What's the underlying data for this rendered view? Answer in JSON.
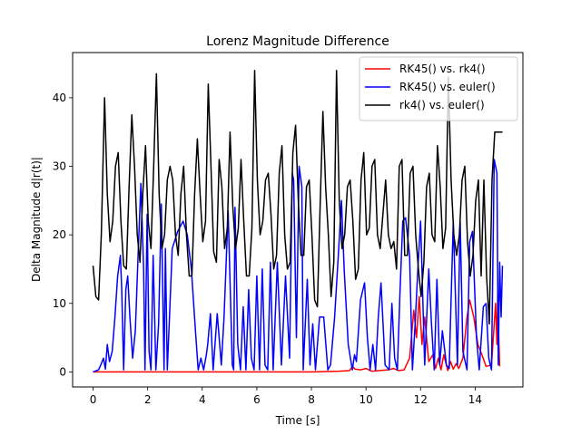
{
  "chart_data": {
    "type": "line",
    "title": "Lorenz Magnitude Difference",
    "xlabel": "Time [s]",
    "ylabel": "Delta Magnitude d|r(t)|",
    "xlim": [
      -0.75,
      15.75
    ],
    "ylim": [
      -2.2,
      46.6
    ],
    "xticks": [
      0,
      2,
      4,
      6,
      8,
      10,
      12,
      14
    ],
    "yticks": [
      0,
      10,
      20,
      30,
      40
    ],
    "grid": false,
    "legend_position": "top-right",
    "series": [
      {
        "name": "RK45() vs. rk4()",
        "color": "#ff0000",
        "x": [
          0,
          1,
          2,
          3,
          4,
          5,
          6,
          7,
          8,
          9,
          9.4,
          9.5,
          9.6,
          9.8,
          10.0,
          10.2,
          10.5,
          10.8,
          11.0,
          11.2,
          11.4,
          11.6,
          11.75,
          11.85,
          11.95,
          12.05,
          12.15,
          12.3,
          12.45,
          12.55,
          12.65,
          12.75,
          12.85,
          13.0,
          13.1,
          13.2,
          13.3,
          13.4,
          13.55,
          13.7,
          13.8,
          13.95,
          14.1,
          14.25,
          14.4,
          14.6,
          14.75,
          14.8,
          14.83,
          14.86,
          14.9
        ],
        "y": [
          0,
          0,
          0,
          0,
          0,
          0,
          0,
          0,
          0,
          0.1,
          0.2,
          0.8,
          0.4,
          0.3,
          0.5,
          0.1,
          0.2,
          0.3,
          0.5,
          0.2,
          0.3,
          2,
          9,
          5,
          11,
          4,
          8,
          1.5,
          2.5,
          0.5,
          2,
          0.3,
          2.5,
          0.2,
          1.5,
          0.4,
          1.2,
          0.5,
          2,
          8,
          10.5,
          8,
          4,
          2.5,
          0.8,
          1,
          10,
          4,
          12,
          6,
          0.8
        ]
      },
      {
        "name": "RK45() vs. euler()",
        "color": "#0000ff",
        "x": [
          0,
          0.2,
          0.3,
          0.38,
          0.45,
          0.52,
          0.6,
          0.7,
          0.8,
          0.9,
          1.0,
          1.05,
          1.12,
          1.2,
          1.27,
          1.35,
          1.45,
          1.55,
          1.65,
          1.75,
          1.85,
          1.9,
          1.98,
          2.05,
          2.12,
          2.2,
          2.3,
          2.4,
          2.5,
          2.6,
          2.65,
          2.72,
          2.8,
          2.9,
          3.1,
          3.3,
          3.45,
          3.6,
          3.75,
          3.85,
          3.95,
          4.05,
          4.15,
          4.2,
          4.3,
          4.4,
          4.55,
          4.7,
          4.8,
          4.95,
          5.1,
          5.15,
          5.2,
          5.3,
          5.4,
          5.5,
          5.6,
          5.7,
          5.8,
          5.9,
          6.0,
          6.1,
          6.2,
          6.3,
          6.4,
          6.5,
          6.6,
          6.75,
          6.9,
          7.05,
          7.2,
          7.3,
          7.35,
          7.45,
          7.55,
          7.65,
          7.7,
          7.85,
          7.95,
          8.05,
          8.15,
          8.3,
          8.45,
          8.6,
          8.7,
          8.85,
          9.0,
          9.1,
          9.2,
          9.35,
          9.5,
          9.58,
          9.65,
          9.8,
          9.95,
          10.05,
          10.15,
          10.25,
          10.35,
          10.45,
          10.55,
          10.7,
          10.85,
          10.95,
          11.05,
          11.15,
          11.25,
          11.35,
          11.45,
          11.6,
          11.7,
          11.8,
          11.9,
          12.0,
          12.15,
          12.3,
          12.4,
          12.5,
          12.6,
          12.7,
          12.8,
          12.95,
          13.05,
          13.2,
          13.35,
          13.45,
          13.55,
          13.7,
          13.8,
          13.9,
          14.05,
          14.15,
          14.3,
          14.4,
          14.5,
          14.6,
          14.7,
          14.8,
          14.85,
          14.9,
          14.95,
          15.0
        ],
        "y": [
          0,
          0.3,
          1.2,
          2,
          0.4,
          4,
          1.5,
          3,
          8,
          14,
          17,
          12,
          0.3,
          12,
          14,
          8,
          2,
          6,
          17,
          27.5,
          15,
          0.3,
          23,
          3,
          0.3,
          17,
          0.3,
          7,
          24.5,
          0.3,
          18,
          0.3,
          8,
          18,
          20.5,
          22,
          20,
          15,
          6,
          0.3,
          2,
          0.3,
          2.5,
          4,
          8.5,
          0.3,
          8.5,
          1,
          8,
          23.5,
          1,
          0.3,
          24,
          4,
          0.3,
          9.5,
          0.3,
          12,
          2,
          0.3,
          14,
          0.3,
          15,
          1,
          0.3,
          16,
          0.3,
          16,
          1,
          14,
          2,
          29,
          28,
          5,
          30,
          27,
          0.3,
          13.5,
          1,
          7,
          0.3,
          8,
          8,
          0.3,
          1,
          8,
          18,
          25,
          15,
          4,
          0.3,
          2.5,
          1.5,
          10.5,
          13,
          5,
          0.3,
          4,
          0.3,
          8,
          13,
          1,
          0.3,
          10,
          2,
          0.3,
          12,
          22,
          22.5,
          17,
          0.3,
          7,
          15,
          22,
          1,
          15,
          7,
          0.3,
          13.5,
          1,
          6,
          1,
          0.5,
          22,
          1,
          22,
          3,
          0.3,
          19,
          20.5,
          5,
          0.3,
          9.5,
          10,
          2,
          0.3,
          31,
          29,
          1,
          16,
          8,
          15.5
        ],
        "x_unused": null
      },
      {
        "name": "rk4() vs. euler()",
        "color": "#000000",
        "x": [
          0,
          0.1,
          0.2,
          0.3,
          0.42,
          0.52,
          0.62,
          0.72,
          0.82,
          0.92,
          1.02,
          1.12,
          1.22,
          1.32,
          1.42,
          1.52,
          1.62,
          1.72,
          1.82,
          1.92,
          2.02,
          2.12,
          2.22,
          2.32,
          2.42,
          2.52,
          2.62,
          2.72,
          2.82,
          2.92,
          3.02,
          3.12,
          3.22,
          3.32,
          3.42,
          3.52,
          3.62,
          3.72,
          3.82,
          3.92,
          4.02,
          4.12,
          4.22,
          4.32,
          4.42,
          4.52,
          4.62,
          4.72,
          4.82,
          4.92,
          5.02,
          5.12,
          5.22,
          5.32,
          5.42,
          5.52,
          5.62,
          5.72,
          5.82,
          5.92,
          6.02,
          6.12,
          6.22,
          6.32,
          6.42,
          6.52,
          6.62,
          6.72,
          6.82,
          6.92,
          7.02,
          7.12,
          7.22,
          7.32,
          7.42,
          7.52,
          7.62,
          7.72,
          7.82,
          7.92,
          8.02,
          8.12,
          8.22,
          8.32,
          8.42,
          8.52,
          8.62,
          8.72,
          8.82,
          8.92,
          9.02,
          9.12,
          9.22,
          9.32,
          9.42,
          9.52,
          9.62,
          9.72,
          9.82,
          9.92,
          10.02,
          10.12,
          10.22,
          10.32,
          10.42,
          10.52,
          10.62,
          10.72,
          10.82,
          10.92,
          11.02,
          11.12,
          11.22,
          11.32,
          11.42,
          11.52,
          11.62,
          11.72,
          11.82,
          11.92,
          12.02,
          12.12,
          12.22,
          12.32,
          12.42,
          12.52,
          12.62,
          12.72,
          12.82,
          12.92,
          13.02,
          13.12,
          13.22,
          13.32,
          13.42,
          13.52,
          13.62,
          13.72,
          13.82,
          13.92,
          14.02,
          14.12,
          14.22,
          14.32,
          14.42,
          14.52,
          14.62,
          14.72,
          14.82,
          14.92,
          15.0
        ],
        "y": [
          15.5,
          11,
          10.5,
          20,
          40,
          26,
          19,
          22,
          30,
          32,
          22,
          15.5,
          15,
          27,
          37.5,
          30,
          20,
          16,
          26,
          33,
          22,
          18,
          30,
          43.5,
          26,
          18,
          20,
          28,
          30,
          28,
          20,
          17,
          26,
          30,
          20,
          14,
          14,
          26,
          34,
          26,
          19,
          22,
          42,
          30,
          17.5,
          16,
          31,
          27,
          18,
          21,
          35,
          24,
          18,
          21,
          31,
          22,
          14,
          14,
          21,
          44,
          28,
          20,
          22,
          28,
          29,
          23,
          15,
          17,
          29,
          33,
          20,
          15,
          16,
          32,
          36,
          25,
          17,
          17,
          27,
          28,
          20,
          10.5,
          9.5,
          24,
          38,
          27,
          20,
          11,
          16,
          44,
          25,
          18,
          20,
          27,
          28,
          22,
          13.5,
          15,
          28,
          32,
          20,
          21,
          30,
          31,
          20,
          18,
          23,
          28,
          20,
          18,
          19,
          15,
          30,
          31,
          17,
          17,
          29,
          30,
          20,
          15,
          11,
          16,
          27,
          29,
          20,
          19,
          33,
          27,
          18,
          21,
          43,
          28,
          20,
          17,
          20,
          28,
          30,
          19,
          14,
          17,
          25,
          28,
          14,
          28,
          14,
          7,
          28,
          35,
          35,
          35,
          35
        ]
      }
    ]
  }
}
